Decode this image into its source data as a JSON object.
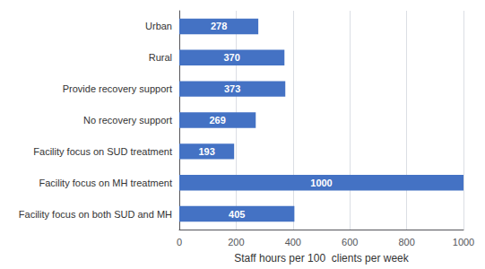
{
  "chart_data": {
    "type": "bar",
    "orientation": "horizontal",
    "categories": [
      "Facility focus on both SUD and MH",
      "Facility focus on MH treatment",
      "Facility focus on SUD treatment",
      "No recovery support",
      "Provide recovery support",
      "Rural",
      "Urban"
    ],
    "values": [
      405,
      1000,
      193,
      269,
      373,
      370,
      278
    ],
    "color": "#4472C4",
    "xlabel": "Staff hours per 100  clients per week",
    "xlim": [
      0,
      1000
    ],
    "xticks": [
      0,
      200,
      400,
      600,
      800,
      1000
    ],
    "grid": true,
    "data_labels": true
  }
}
